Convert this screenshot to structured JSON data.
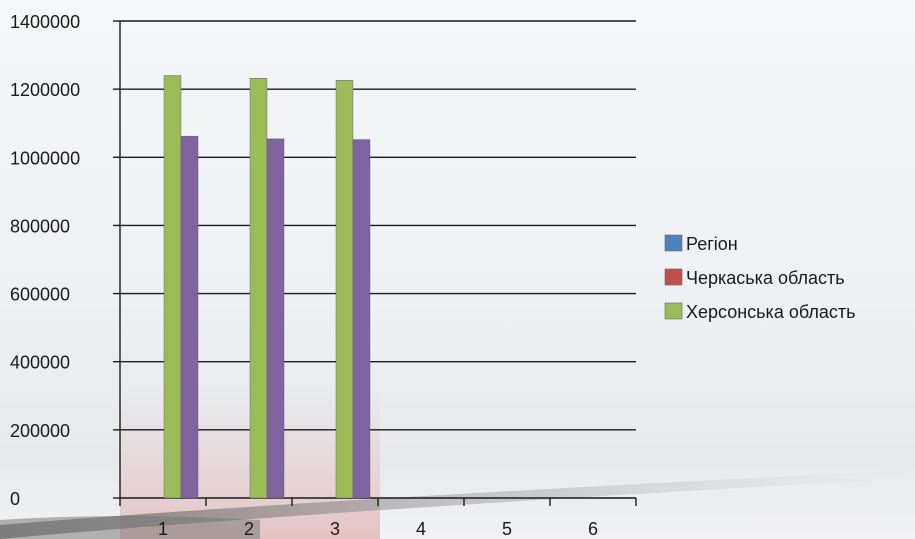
{
  "chart_data": {
    "type": "bar",
    "title": "",
    "xlabel": "",
    "ylabel": "",
    "categories": [
      "1",
      "2",
      "3",
      "4",
      "5",
      "6"
    ],
    "ylim": [
      0,
      1400000
    ],
    "yticks": [
      0,
      200000,
      400000,
      600000,
      800000,
      1000000,
      1200000,
      1400000
    ],
    "grid": "horizontal",
    "legend_position": "right",
    "series": [
      {
        "name": "Регіон",
        "color": "#4f81bd",
        "values": [
          null,
          null,
          null,
          null,
          null,
          null
        ]
      },
      {
        "name": "Черкаська область",
        "color": "#c0504d",
        "values": [
          null,
          null,
          null,
          null,
          null,
          null
        ]
      },
      {
        "name": "Херсонська область",
        "color": "#9bbb59",
        "values": [
          1240000,
          1232000,
          1226000,
          null,
          null,
          null
        ]
      },
      {
        "name": "",
        "color": "#8064a2",
        "values": [
          1062000,
          1054000,
          1052000,
          null,
          null,
          null
        ]
      }
    ]
  }
}
